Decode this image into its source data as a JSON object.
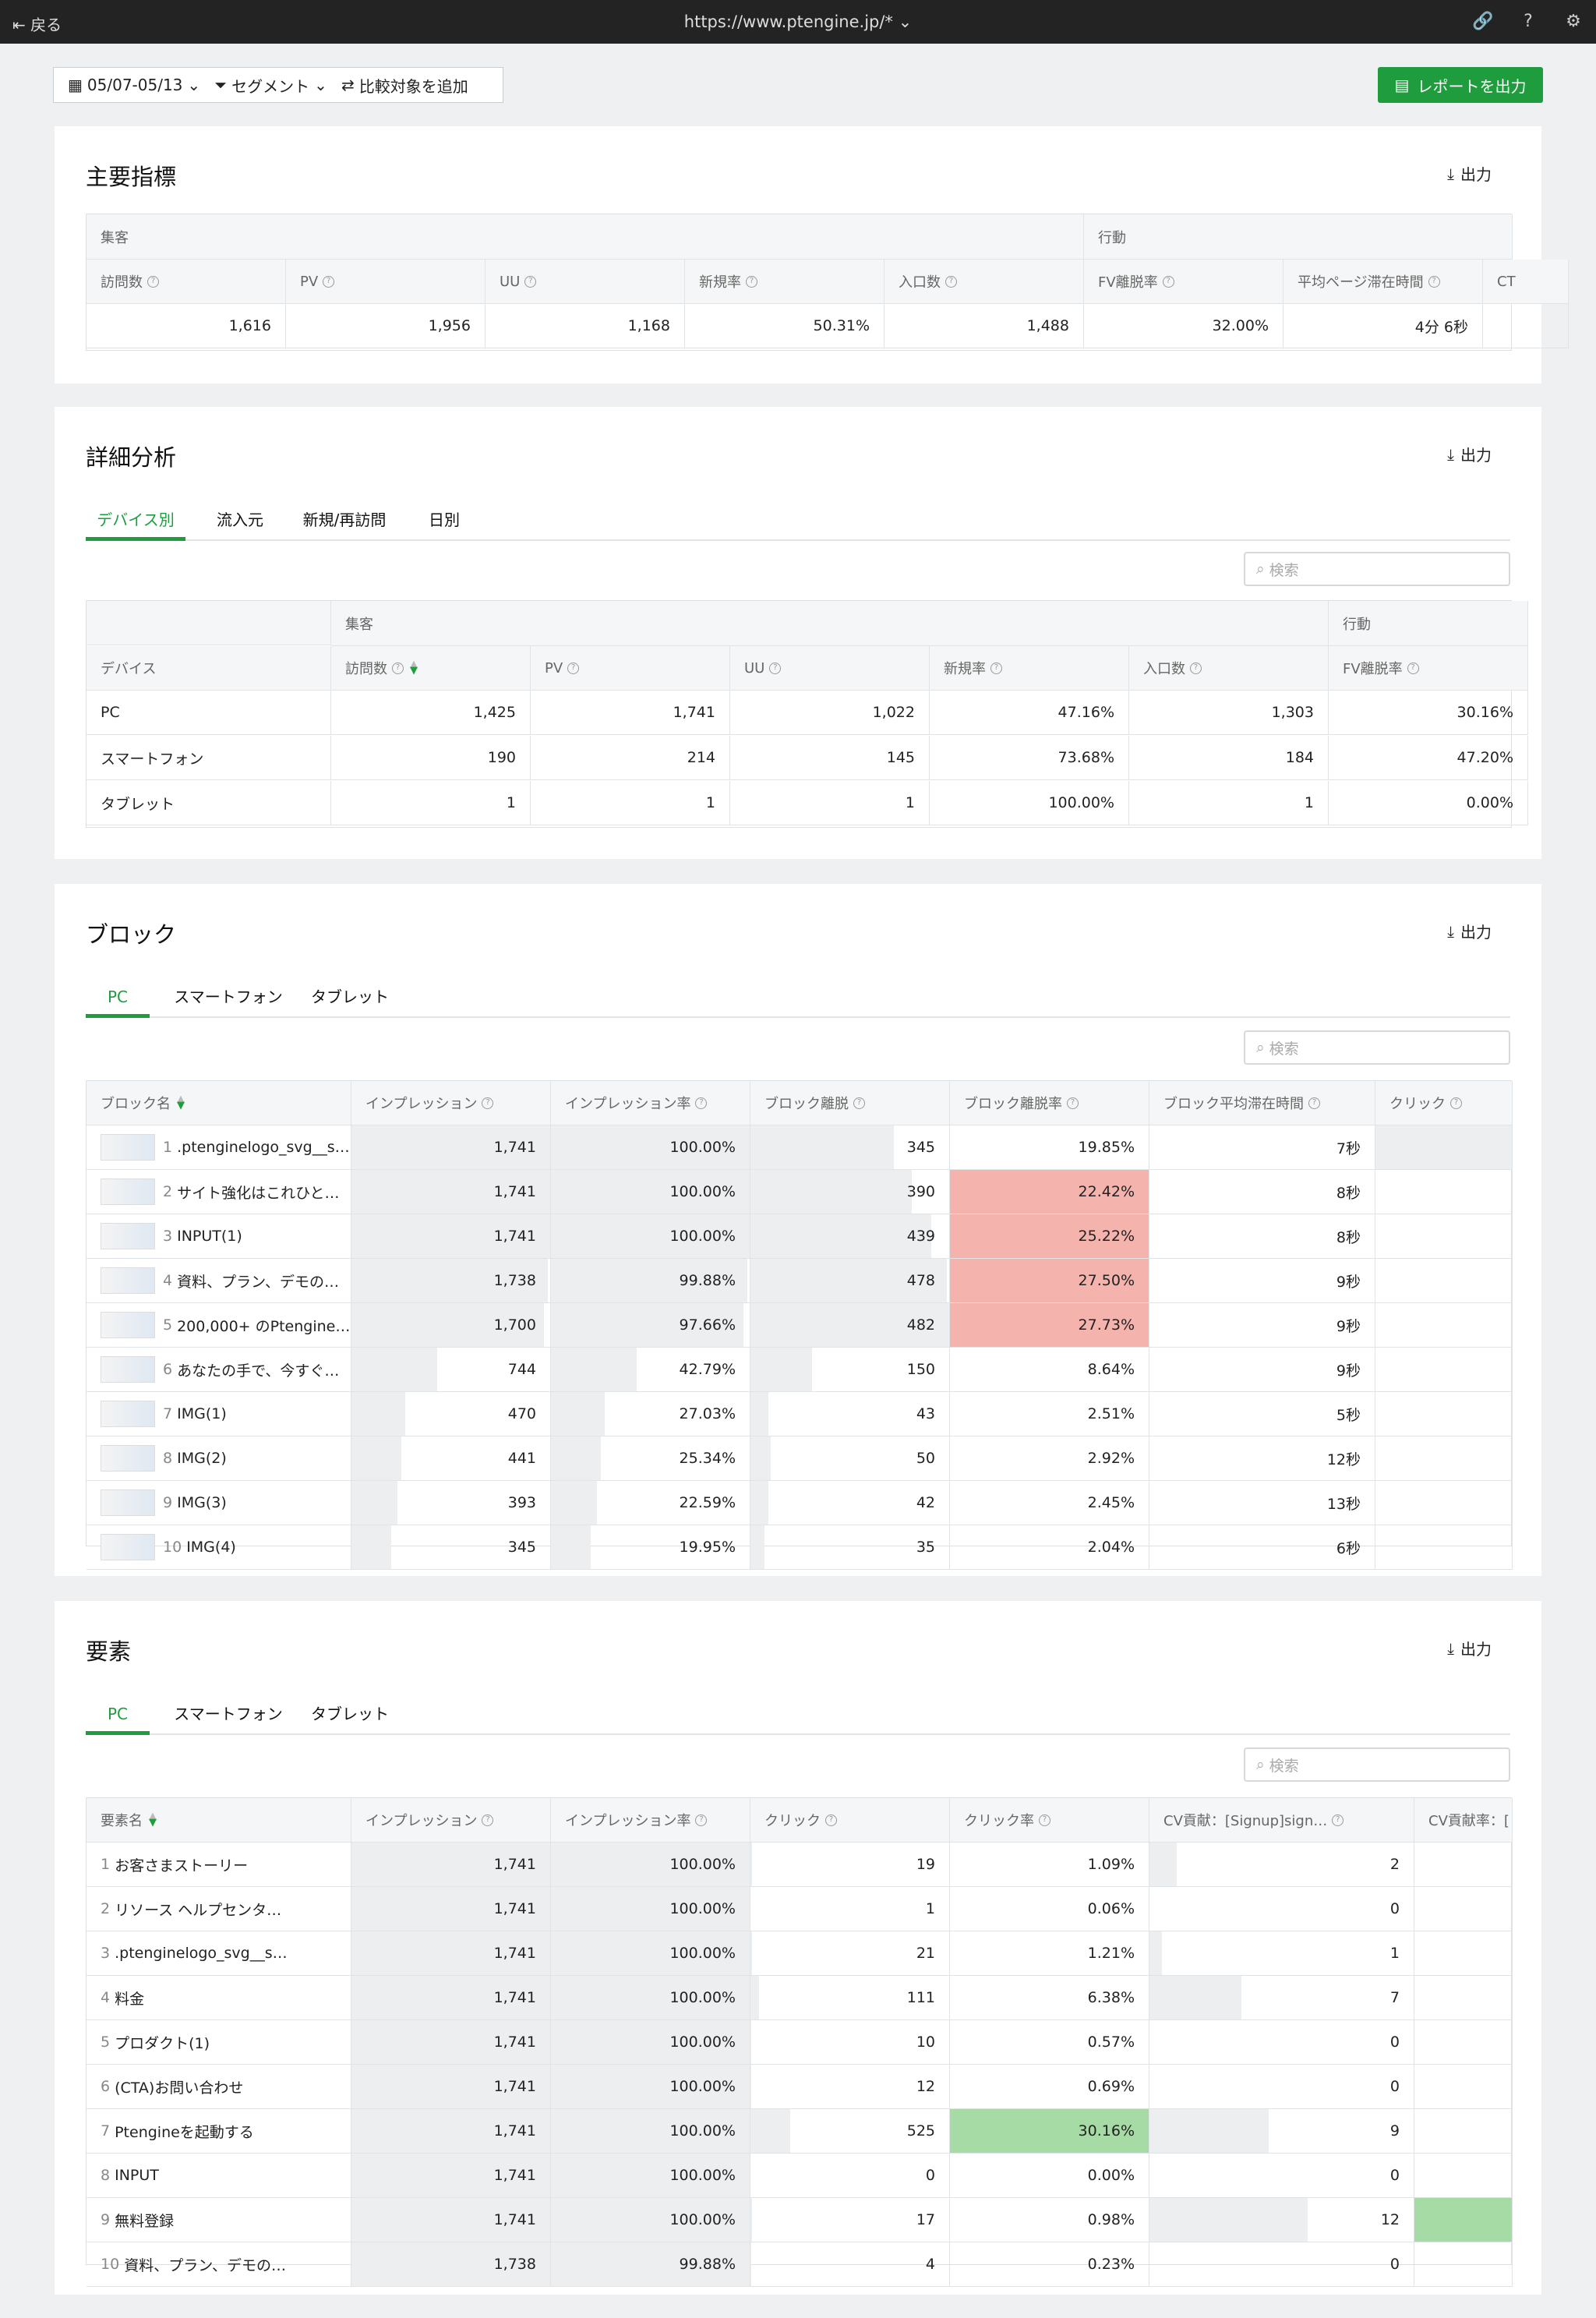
{
  "topbar": {
    "back": "戻る",
    "url": "https://www.ptengine.jp/*"
  },
  "toolbar": {
    "date": "05/07-05/13",
    "segment": "セグメント",
    "compare": "比較対象を追加",
    "report": "レポートを出力"
  },
  "export": "出力",
  "search_placeholder": "検索",
  "kpi": {
    "title": "主要指標",
    "group1": "集客",
    "group2": "行動",
    "headers": [
      "訪問数",
      "PV",
      "UU",
      "新規率",
      "入口数",
      "FV離脱率",
      "平均ページ滞在時間",
      "CT"
    ],
    "values": [
      "1,616",
      "1,956",
      "1,168",
      "50.31%",
      "1,488",
      "32.00%",
      "4分 6秒",
      ""
    ]
  },
  "detail": {
    "title": "詳細分析",
    "tabs": [
      "デバイス別",
      "流入元",
      "新規/再訪問",
      "日別"
    ],
    "group1": "集客",
    "group2": "行動",
    "dim": "デバイス",
    "headers": [
      "訪問数",
      "PV",
      "UU",
      "新規率",
      "入口数",
      "FV離脱率"
    ],
    "rows": [
      {
        "name": "PC",
        "values": [
          "1,425",
          "1,741",
          "1,022",
          "47.16%",
          "1,303",
          "30.16%"
        ]
      },
      {
        "name": "スマートフォン",
        "values": [
          "190",
          "214",
          "145",
          "73.68%",
          "184",
          "47.20%"
        ]
      },
      {
        "name": "タブレット",
        "values": [
          "1",
          "1",
          "1",
          "100.00%",
          "1",
          "0.00%"
        ]
      }
    ]
  },
  "block": {
    "title": "ブロック",
    "tabs": [
      "PC",
      "スマートフォン",
      "タブレット"
    ],
    "headers": [
      "ブロック名",
      "インプレッション",
      "インプレッション率",
      "ブロック離脱",
      "ブロック離脱率",
      "ブロック平均滞在時間",
      "クリック"
    ],
    "rows": [
      {
        "rank": "1",
        "name": ".ptenginelogo_svg__s…",
        "values": [
          "1,741",
          "100.00%",
          "345",
          "19.85%",
          "7秒",
          ""
        ],
        "ratio": 1.0,
        "exit_ratio": 0.72,
        "hl": false
      },
      {
        "rank": "2",
        "name": "サイト強化はこれひと…",
        "values": [
          "1,741",
          "100.00%",
          "390",
          "22.42%",
          "8秒",
          ""
        ],
        "ratio": 1.0,
        "exit_ratio": 0.81,
        "hl": true
      },
      {
        "rank": "3",
        "name": "INPUT(1)",
        "values": [
          "1,741",
          "100.00%",
          "439",
          "25.22%",
          "8秒",
          ""
        ],
        "ratio": 1.0,
        "exit_ratio": 0.91,
        "hl": true
      },
      {
        "rank": "4",
        "name": "資料、プラン、デモの…",
        "values": [
          "1,738",
          "99.88%",
          "478",
          "27.50%",
          "9秒",
          ""
        ],
        "ratio": 0.99,
        "exit_ratio": 0.99,
        "hl": true
      },
      {
        "rank": "5",
        "name": "200,000+ のPtengine…",
        "values": [
          "1,700",
          "97.66%",
          "482",
          "27.73%",
          "9秒",
          ""
        ],
        "ratio": 0.97,
        "exit_ratio": 1.0,
        "hl": true
      },
      {
        "rank": "6",
        "name": "あなたの手で、今すぐ…",
        "values": [
          "744",
          "42.79%",
          "150",
          "8.64%",
          "9秒",
          ""
        ],
        "ratio": 0.43,
        "exit_ratio": 0.31,
        "hl": false
      },
      {
        "rank": "7",
        "name": "IMG(1)",
        "values": [
          "470",
          "27.03%",
          "43",
          "2.51%",
          "5秒",
          ""
        ],
        "ratio": 0.27,
        "exit_ratio": 0.09,
        "hl": false
      },
      {
        "rank": "8",
        "name": "IMG(2)",
        "values": [
          "441",
          "25.34%",
          "50",
          "2.92%",
          "12秒",
          ""
        ],
        "ratio": 0.25,
        "exit_ratio": 0.1,
        "hl": false
      },
      {
        "rank": "9",
        "name": "IMG(3)",
        "values": [
          "393",
          "22.59%",
          "42",
          "2.45%",
          "13秒",
          ""
        ],
        "ratio": 0.23,
        "exit_ratio": 0.09,
        "hl": false
      },
      {
        "rank": "10",
        "name": "IMG(4)",
        "values": [
          "345",
          "19.95%",
          "35",
          "2.04%",
          "6秒",
          ""
        ],
        "ratio": 0.2,
        "exit_ratio": 0.07,
        "hl": false
      }
    ]
  },
  "element": {
    "title": "要素",
    "tabs": [
      "PC",
      "スマートフォン",
      "タブレット"
    ],
    "headers": [
      "要素名",
      "インプレッション",
      "インプレッション率",
      "クリック",
      "クリック率",
      "CV貢献：[Signup]sign…",
      "CV貢献率：["
    ],
    "rows": [
      {
        "rank": "1",
        "name": "お客さまストーリー",
        "values": [
          "1,741",
          "100.00%",
          "19",
          "1.09%",
          "2",
          ""
        ],
        "click_ratio": 0.04,
        "cv_ratio": 0.17,
        "hl": false,
        "cvhl": false
      },
      {
        "rank": "2",
        "name": "リソース ヘルプセンタ…",
        "values": [
          "1,741",
          "100.00%",
          "1",
          "0.06%",
          "0",
          ""
        ],
        "click_ratio": 0.0,
        "cv_ratio": 0.0,
        "hl": false,
        "cvhl": false
      },
      {
        "rank": "3",
        "name": ".ptenginelogo_svg__s…",
        "values": [
          "1,741",
          "100.00%",
          "21",
          "1.21%",
          "1",
          ""
        ],
        "click_ratio": 0.04,
        "cv_ratio": 0.08,
        "hl": false,
        "cvhl": false
      },
      {
        "rank": "4",
        "name": "料金",
        "values": [
          "1,741",
          "100.00%",
          "111",
          "6.38%",
          "7",
          ""
        ],
        "click_ratio": 0.21,
        "cv_ratio": 0.58,
        "hl": false,
        "cvhl": false
      },
      {
        "rank": "5",
        "name": "プロダクト(1)",
        "values": [
          "1,741",
          "100.00%",
          "10",
          "0.57%",
          "0",
          ""
        ],
        "click_ratio": 0.02,
        "cv_ratio": 0.0,
        "hl": false,
        "cvhl": false
      },
      {
        "rank": "6",
        "name": "(CTA)お問い合わせ",
        "values": [
          "1,741",
          "100.00%",
          "12",
          "0.69%",
          "0",
          ""
        ],
        "click_ratio": 0.02,
        "cv_ratio": 0.0,
        "hl": false,
        "cvhl": false
      },
      {
        "rank": "7",
        "name": "Ptengineを起動する",
        "values": [
          "1,741",
          "100.00%",
          "525",
          "30.16%",
          "9",
          ""
        ],
        "click_ratio": 1.0,
        "cv_ratio": 0.75,
        "hl": true,
        "cvhl": false
      },
      {
        "rank": "8",
        "name": "INPUT",
        "values": [
          "1,741",
          "100.00%",
          "0",
          "0.00%",
          "0",
          ""
        ],
        "click_ratio": 0.0,
        "cv_ratio": 0.0,
        "hl": false,
        "cvhl": false
      },
      {
        "rank": "9",
        "name": "無料登録",
        "values": [
          "1,741",
          "100.00%",
          "17",
          "0.98%",
          "12",
          ""
        ],
        "click_ratio": 0.03,
        "cv_ratio": 1.0,
        "hl": false,
        "cvhl": true
      },
      {
        "rank": "10",
        "name": "資料、プラン、デモの…",
        "values": [
          "1,738",
          "99.88%",
          "4",
          "0.23%",
          "0",
          ""
        ],
        "click_ratio": 0.01,
        "cv_ratio": 0.0,
        "hl": false,
        "cvhl": false
      }
    ]
  },
  "colors": {
    "accent": "#1f9d3e",
    "exit_highlight": "#f4b3ad",
    "click_highlight": "#a7dba5"
  }
}
